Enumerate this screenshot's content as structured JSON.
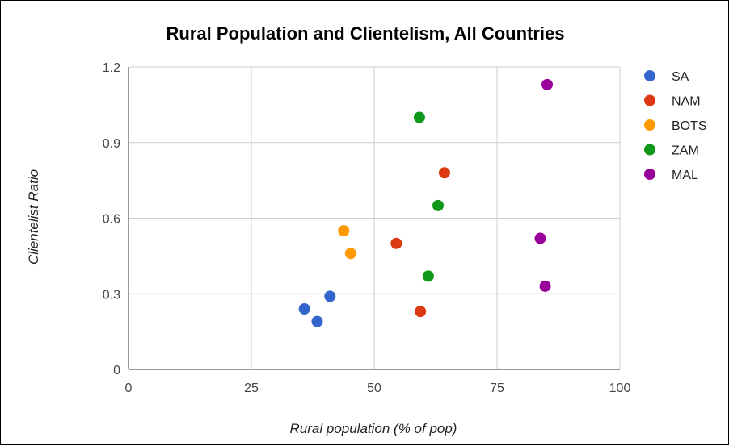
{
  "chart_data": {
    "type": "scatter",
    "title": "Rural Population and Clientelism, All Countries",
    "xlabel": "Rural population (% of pop)",
    "ylabel": "Clientelist Ratio",
    "xlim": [
      0,
      100
    ],
    "ylim": [
      0,
      1.2
    ],
    "x_ticks": [
      "0",
      "25",
      "50",
      "75",
      "100"
    ],
    "y_ticks": [
      "0",
      "0.3",
      "0.6",
      "0.9",
      "1.2"
    ],
    "grid": true,
    "legend_position": "right",
    "series": [
      {
        "name": "SA",
        "color": "#3366cc",
        "points": [
          [
            35.8,
            0.24
          ],
          [
            38.4,
            0.19
          ],
          [
            41.0,
            0.29
          ]
        ]
      },
      {
        "name": "NAM",
        "color": "#dc3912",
        "points": [
          [
            54.5,
            0.5
          ],
          [
            59.4,
            0.23
          ],
          [
            64.3,
            0.78
          ]
        ]
      },
      {
        "name": "BOTS",
        "color": "#ff9900",
        "points": [
          [
            43.8,
            0.55
          ],
          [
            45.2,
            0.46
          ]
        ]
      },
      {
        "name": "ZAM",
        "color": "#109618",
        "points": [
          [
            59.2,
            1.0
          ],
          [
            61.0,
            0.37
          ],
          [
            63.0,
            0.65
          ]
        ]
      },
      {
        "name": "MAL",
        "color": "#990099",
        "points": [
          [
            83.8,
            0.52
          ],
          [
            84.8,
            0.33
          ],
          [
            85.2,
            1.13
          ]
        ]
      }
    ]
  }
}
